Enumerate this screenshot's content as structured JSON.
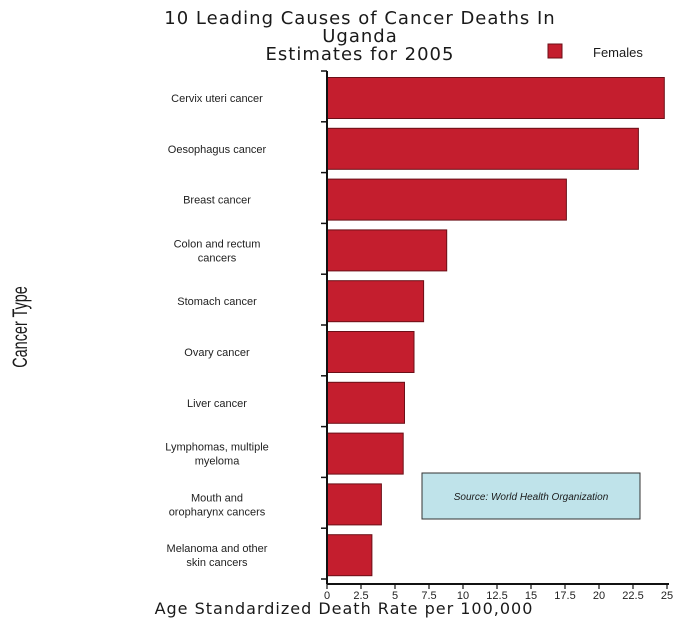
{
  "chart_data": {
    "type": "bar",
    "orientation": "horizontal",
    "title_lines": [
      "10 Leading Causes of Cancer Deaths In",
      "Uganda",
      "Estimates for 2005"
    ],
    "xlabel": "Age Standardized Death Rate per 100,000",
    "ylabel": "Cancer Type",
    "xlim": [
      0,
      25
    ],
    "x_ticks": [
      "0",
      "2.5",
      "5",
      "7.5",
      "10",
      "12.5",
      "15",
      "17.5",
      "20",
      "22.5",
      "25"
    ],
    "categories": [
      [
        "Cervix uteri cancer"
      ],
      [
        "Oesophagus cancer"
      ],
      [
        "Breast cancer"
      ],
      [
        "Colon and rectum",
        "cancers"
      ],
      [
        "Stomach cancer"
      ],
      [
        "Ovary cancer"
      ],
      [
        "Liver cancer"
      ],
      [
        "Lymphomas, multiple",
        "myeloma"
      ],
      [
        "Mouth and",
        "oropharynx cancers"
      ],
      [
        "Melanoma and other",
        "skin cancers"
      ]
    ],
    "series": [
      {
        "name": "Females",
        "color": "#c41e2e",
        "values": [
          24.8,
          22.9,
          17.6,
          8.8,
          7.1,
          6.4,
          5.7,
          5.6,
          4.0,
          3.3
        ]
      }
    ],
    "legend_position": "top-right",
    "annotation": "Source: World Health Organization",
    "grid": false
  }
}
